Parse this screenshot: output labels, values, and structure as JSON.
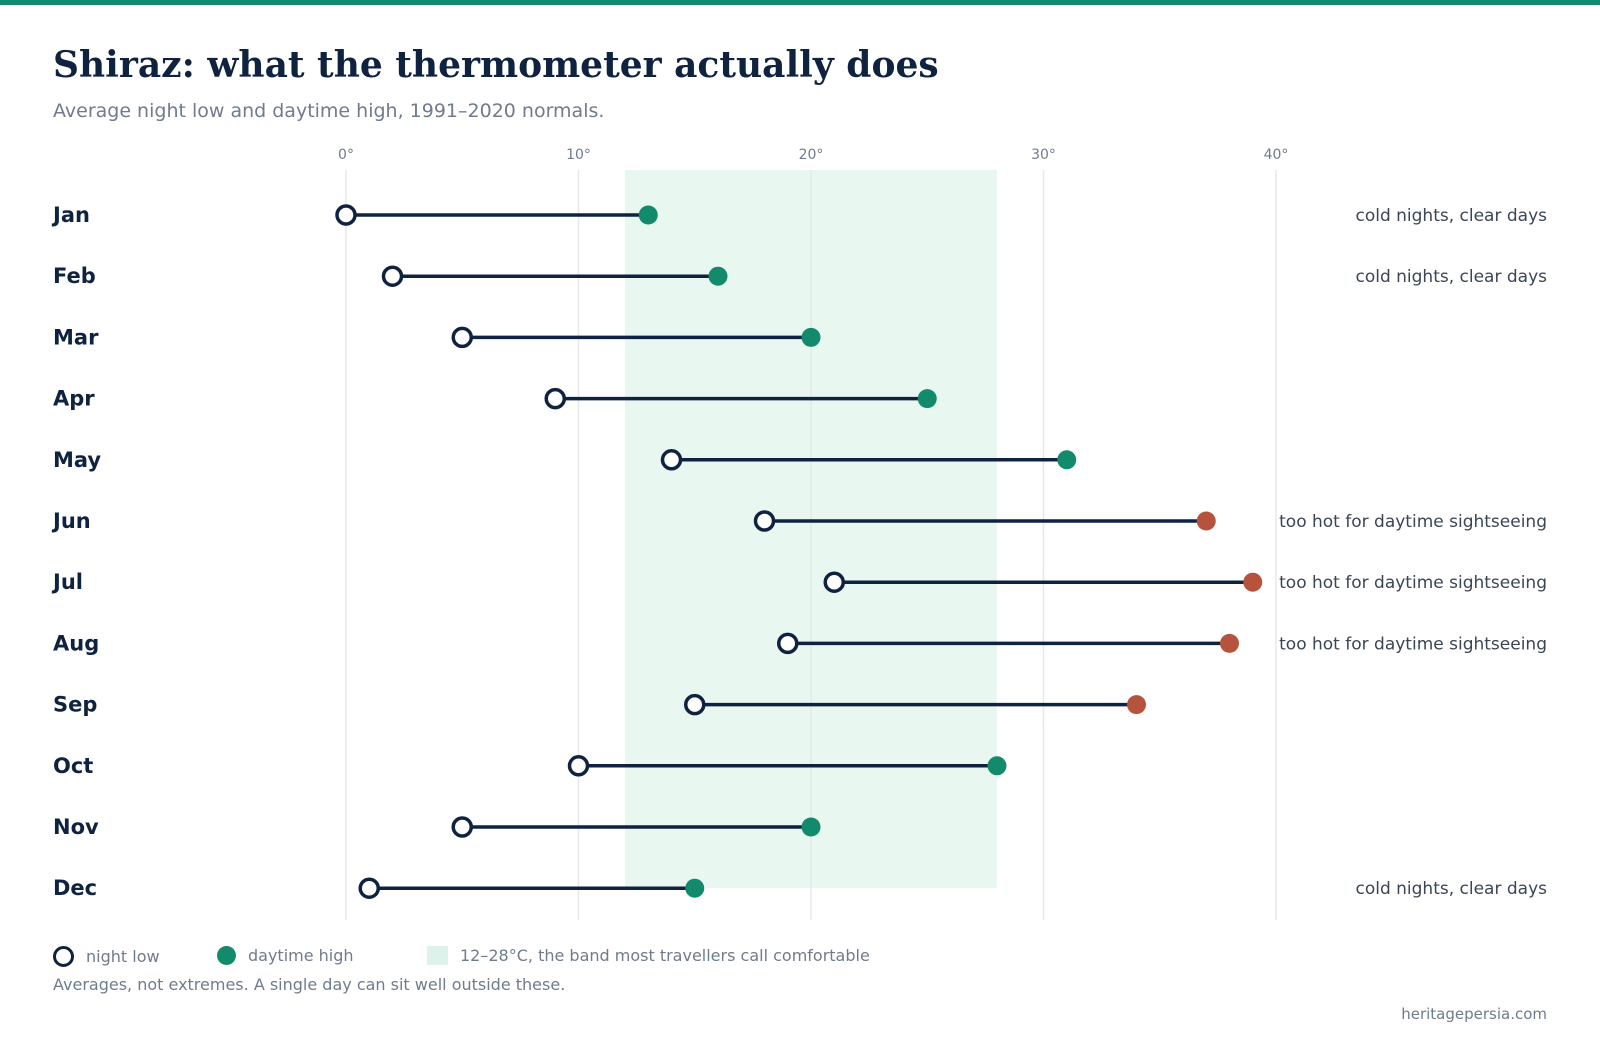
{
  "header": {
    "title": "Shiraz: what the thermometer actually does",
    "subtitle": "Average night low and daytime high, 1991–2020 normals."
  },
  "legend": {
    "low_label": "night low",
    "high_label": "daytime high",
    "band_label": "12–28°C, the band most travellers call comfortable"
  },
  "footnote": "Averages, not extremes. A single day can sit well outside these.",
  "source": "heritagepersia.com",
  "colors": {
    "accent": "#138a6b",
    "ink": "#0f2340",
    "hot": "#b5533c",
    "band": "#e9f7f1",
    "grid": "#e6e8ea",
    "muted": "#6f7c8c"
  },
  "chart_data": {
    "type": "dumbbell",
    "title": "Shiraz: what the thermometer actually does",
    "subtitle": "Average night low and daytime high, 1991–2020 normals.",
    "categories": [
      "Jan",
      "Feb",
      "Mar",
      "Apr",
      "May",
      "Jun",
      "Jul",
      "Aug",
      "Sep",
      "Oct",
      "Nov",
      "Dec"
    ],
    "series": [
      {
        "name": "night low",
        "values": [
          0,
          2,
          5,
          9,
          14,
          18,
          21,
          19,
          15,
          10,
          5,
          1
        ]
      },
      {
        "name": "daytime high",
        "values": [
          13,
          16,
          20,
          25,
          31,
          37,
          39,
          38,
          34,
          28,
          20,
          15
        ]
      }
    ],
    "hot_months": [
      "Jun",
      "Jul",
      "Aug",
      "Sep"
    ],
    "comfort_band": [
      12,
      28
    ],
    "annotations": [
      "cold nights, clear days",
      "cold nights, clear days",
      "",
      "",
      "",
      "too hot for daytime sightseeing",
      "too hot for daytime sightseeing",
      "too hot for daytime sightseeing",
      "",
      "",
      "",
      "cold nights, clear days"
    ],
    "xlim": [
      0,
      40
    ],
    "xticks": [
      0,
      10,
      20,
      30,
      40
    ],
    "xtick_labels": [
      "0°",
      "10°",
      "20°",
      "30°",
      "40°"
    ],
    "grid": true,
    "legend_position": "bottom-left"
  }
}
